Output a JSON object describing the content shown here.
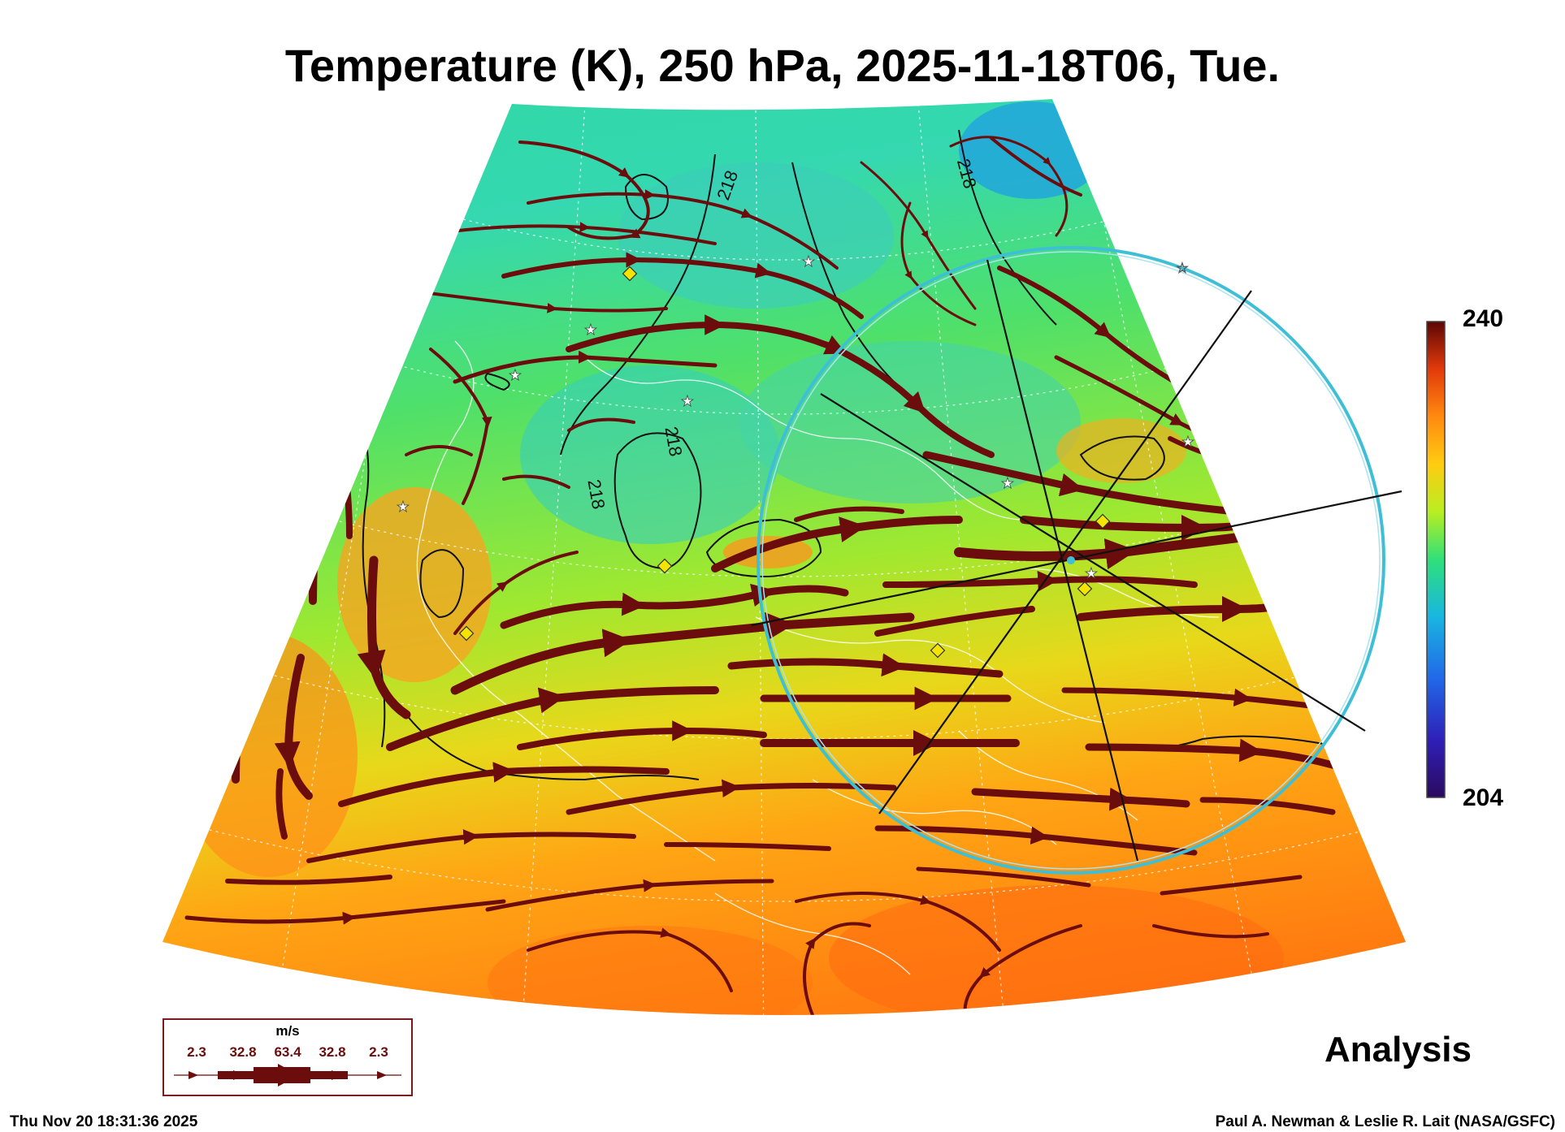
{
  "title": "Temperature (K), 250 hPa, 2025-11-18T06, Tue.",
  "colorbar": {
    "max": "240",
    "min": "204"
  },
  "contour_label": "218",
  "legend": {
    "unit": "m/s",
    "values": [
      "2.3",
      "32.8",
      "63.4",
      "32.8",
      "2.3"
    ]
  },
  "product_label": "Analysis",
  "footer": {
    "timestamp": "Thu Nov 20 18:31:36 2025",
    "credit": "Paul A. Newman & Leslie R. Lait (NASA/GSFC)"
  },
  "colors": {
    "streamline": "#6b0d0d",
    "range_ring": "#3fbfd6",
    "station_marker": "#f5e400",
    "colormap": [
      "#2a0a5e",
      "#2246d8",
      "#19b6e0",
      "#2fe07a",
      "#b8ee22",
      "#ffcc11",
      "#ff8a10",
      "#e23a0a",
      "#5c0606"
    ]
  },
  "icons": [
    "diamond-station-icon",
    "star-station-icon"
  ]
}
